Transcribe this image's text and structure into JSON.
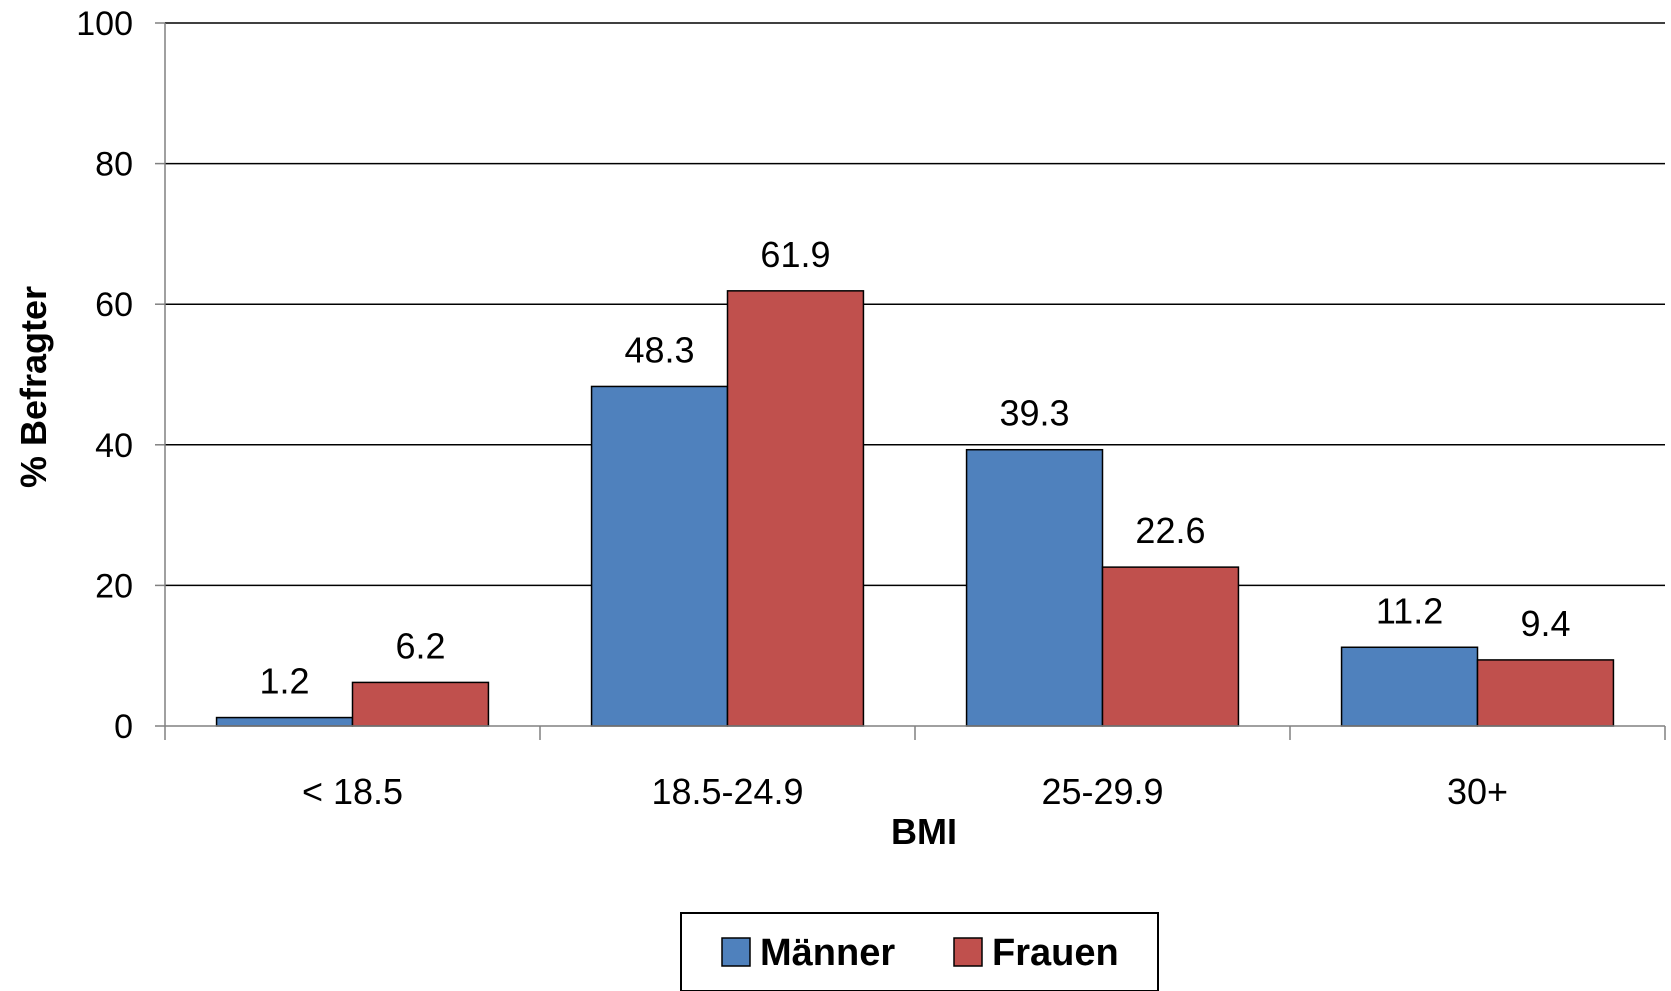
{
  "chart_data": {
    "type": "bar",
    "title": "",
    "xlabel": "BMI",
    "ylabel": "% Befragter",
    "ylim": [
      0,
      100
    ],
    "yticks": [
      0,
      20,
      40,
      60,
      80,
      100
    ],
    "grid": true,
    "legend_position": "bottom",
    "categories": [
      "< 18.5",
      "18.5-24.9",
      "25-29.9",
      "30+"
    ],
    "series": [
      {
        "name": "Männer",
        "color": "#4F81BD",
        "values": [
          1.2,
          48.3,
          39.3,
          11.2
        ]
      },
      {
        "name": "Frauen",
        "color": "#C0504D",
        "values": [
          6.2,
          61.9,
          22.6,
          9.4
        ]
      }
    ]
  }
}
